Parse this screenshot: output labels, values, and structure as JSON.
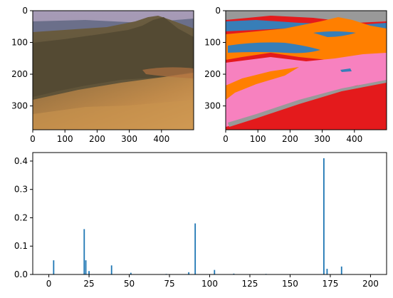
{
  "chart_data": [
    {
      "type": "image",
      "content": "desert-sand-dune-photo",
      "xticks": [
        0,
        100,
        200,
        300,
        400
      ],
      "yticks": [
        0,
        100,
        200,
        300
      ],
      "xlim": [
        0,
        500
      ],
      "ylim": [
        375,
        0
      ]
    },
    {
      "type": "image",
      "content": "segmentation-label-map",
      "colors": {
        "red": "#e41a1c",
        "blue": "#377eb8",
        "orange": "#ff7f00",
        "pink": "#f781bf",
        "gray": "#999999"
      },
      "xticks": [
        0,
        100,
        200,
        300,
        400
      ],
      "yticks": [
        0,
        100,
        200,
        300
      ],
      "xlim": [
        0,
        500
      ],
      "ylim": [
        375,
        0
      ]
    },
    {
      "type": "bar",
      "color": "#1f77b4",
      "xlim": [
        -10,
        210
      ],
      "ylim": [
        0,
        0.43
      ],
      "xticks": [
        0,
        25,
        50,
        75,
        100,
        125,
        150,
        175,
        200
      ],
      "yticks": [
        0.0,
        0.1,
        0.2,
        0.3,
        0.4
      ],
      "ytick_labels": [
        "0.0",
        "0.1",
        "0.2",
        "0.3",
        "0.4"
      ],
      "x": [
        3,
        22,
        23,
        25,
        39,
        51,
        73,
        87,
        91,
        103,
        115,
        135,
        171,
        173,
        182
      ],
      "values": [
        0.05,
        0.16,
        0.05,
        0.012,
        0.032,
        0.006,
        0.002,
        0.008,
        0.18,
        0.016,
        0.003,
        0.002,
        0.41,
        0.02,
        0.028
      ]
    }
  ]
}
